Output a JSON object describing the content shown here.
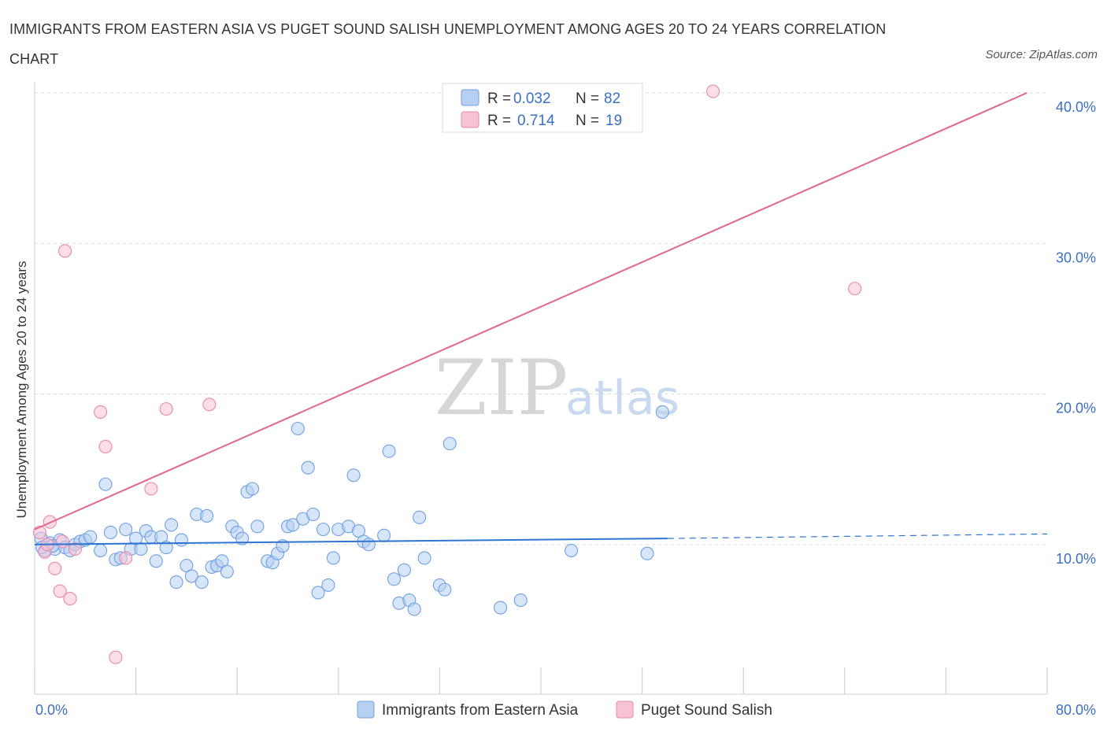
{
  "title": "IMMIGRANTS FROM EASTERN ASIA VS PUGET SOUND SALISH UNEMPLOYMENT AMONG AGES 20 TO 24 YEARS CORRELATION CHART",
  "source": "Source: ZipAtlas.com",
  "watermark": {
    "zip": "ZIP",
    "atlas": "atlas"
  },
  "colors": {
    "blue": "#6fa0e0",
    "blue_fill": "#b7d0f2",
    "blue_line": "#2f74d0",
    "pink": "#e88aa8",
    "pink_fill": "#f7c3d3",
    "pink_line": "#e06890",
    "grid": "#dddddd",
    "tick_label": "#3a6fc4"
  },
  "legend": {
    "rows": [
      {
        "r_label": "R =",
        "r_value": "0.032",
        "n_label": "N =",
        "n_value": "82"
      },
      {
        "r_label": "R =",
        "r_value": "0.714",
        "n_label": "N =",
        "n_value": "19"
      }
    ]
  },
  "chart_data": {
    "type": "scatter",
    "ylabel": "Unemployment Among Ages 20 to 24 years",
    "xlim": [
      0,
      80
    ],
    "ylim": [
      0,
      40
    ],
    "x_tick_labels": [
      "0.0%",
      "80.0%"
    ],
    "y_ticks": [
      10,
      20,
      30,
      40
    ],
    "y_tick_labels": [
      "10.0%",
      "20.0%",
      "30.0%",
      "40.0%"
    ],
    "grid": "horizontal dashed",
    "legend_position": "top-center",
    "series": [
      {
        "name": "Immigrants from Eastern Asia",
        "color": "#6fa0e0",
        "trend": {
          "x0": 0,
          "y0": 10.0,
          "x1": 50,
          "y1": 10.4,
          "dashed_to": 80,
          "dashed_y": 10.7
        },
        "points": [
          [
            0.5,
            10.4
          ],
          [
            0.8,
            9.6
          ],
          [
            1.2,
            10.1
          ],
          [
            1.6,
            9.7
          ],
          [
            2.0,
            10.3
          ],
          [
            2.4,
            9.8
          ],
          [
            2.8,
            9.6
          ],
          [
            3.2,
            10.0
          ],
          [
            3.6,
            10.2
          ],
          [
            4.0,
            10.3
          ],
          [
            4.4,
            10.5
          ],
          [
            5.2,
            9.6
          ],
          [
            5.6,
            14.0
          ],
          [
            6.0,
            10.8
          ],
          [
            6.4,
            9.0
          ],
          [
            6.8,
            9.1
          ],
          [
            7.2,
            11.0
          ],
          [
            7.6,
            9.7
          ],
          [
            8.0,
            10.4
          ],
          [
            8.4,
            9.7
          ],
          [
            8.8,
            10.9
          ],
          [
            9.2,
            10.5
          ],
          [
            9.6,
            8.9
          ],
          [
            10.0,
            10.5
          ],
          [
            10.4,
            9.8
          ],
          [
            10.8,
            11.3
          ],
          [
            11.2,
            7.5
          ],
          [
            11.6,
            10.3
          ],
          [
            12.0,
            8.6
          ],
          [
            12.4,
            7.9
          ],
          [
            12.8,
            12.0
          ],
          [
            13.2,
            7.5
          ],
          [
            13.6,
            11.9
          ],
          [
            14.0,
            8.5
          ],
          [
            14.4,
            8.6
          ],
          [
            14.8,
            8.9
          ],
          [
            15.2,
            8.2
          ],
          [
            15.6,
            11.2
          ],
          [
            16.0,
            10.8
          ],
          [
            16.4,
            10.4
          ],
          [
            16.8,
            13.5
          ],
          [
            17.2,
            13.7
          ],
          [
            17.6,
            11.2
          ],
          [
            18.4,
            8.9
          ],
          [
            18.8,
            8.8
          ],
          [
            19.2,
            9.4
          ],
          [
            19.6,
            9.9
          ],
          [
            20.0,
            11.2
          ],
          [
            20.4,
            11.3
          ],
          [
            20.8,
            17.7
          ],
          [
            21.2,
            11.7
          ],
          [
            21.6,
            15.1
          ],
          [
            22.0,
            12.0
          ],
          [
            22.4,
            6.8
          ],
          [
            22.8,
            11.0
          ],
          [
            23.2,
            7.3
          ],
          [
            23.6,
            9.1
          ],
          [
            24.0,
            11.0
          ],
          [
            24.8,
            11.2
          ],
          [
            25.2,
            14.6
          ],
          [
            25.6,
            10.9
          ],
          [
            26.0,
            10.2
          ],
          [
            26.4,
            10.0
          ],
          [
            27.6,
            10.6
          ],
          [
            28.0,
            16.2
          ],
          [
            28.4,
            7.7
          ],
          [
            28.8,
            6.1
          ],
          [
            29.2,
            8.3
          ],
          [
            29.6,
            6.3
          ],
          [
            30.0,
            5.7
          ],
          [
            30.4,
            11.8
          ],
          [
            30.8,
            9.1
          ],
          [
            32.0,
            7.3
          ],
          [
            32.4,
            7.0
          ],
          [
            32.8,
            16.7
          ],
          [
            36.8,
            5.8
          ],
          [
            38.4,
            6.3
          ],
          [
            42.4,
            9.6
          ],
          [
            48.4,
            9.4
          ],
          [
            49.6,
            18.8
          ],
          [
            0.6,
            9.8
          ],
          [
            1.4,
            9.9
          ]
        ]
      },
      {
        "name": "Puget Sound Salish",
        "color": "#e88aa8",
        "trend": {
          "x0": 0,
          "y0": 11.0,
          "x1": 78.4,
          "y1": 40.0
        },
        "points": [
          [
            0.4,
            10.8
          ],
          [
            1.2,
            11.5
          ],
          [
            1.6,
            8.4
          ],
          [
            2.0,
            6.9
          ],
          [
            2.4,
            29.5
          ],
          [
            2.8,
            6.4
          ],
          [
            3.2,
            9.7
          ],
          [
            5.2,
            18.8
          ],
          [
            5.6,
            16.5
          ],
          [
            6.4,
            2.5
          ],
          [
            7.2,
            9.1
          ],
          [
            9.2,
            13.7
          ],
          [
            10.4,
            19.0
          ],
          [
            13.8,
            19.3
          ],
          [
            53.6,
            40.1
          ],
          [
            64.8,
            27.0
          ],
          [
            0.8,
            9.5
          ],
          [
            1.0,
            10.0
          ],
          [
            2.2,
            10.2
          ]
        ]
      }
    ]
  },
  "bottom_legend": {
    "items": [
      "Immigrants from Eastern Asia",
      "Puget Sound Salish"
    ]
  }
}
